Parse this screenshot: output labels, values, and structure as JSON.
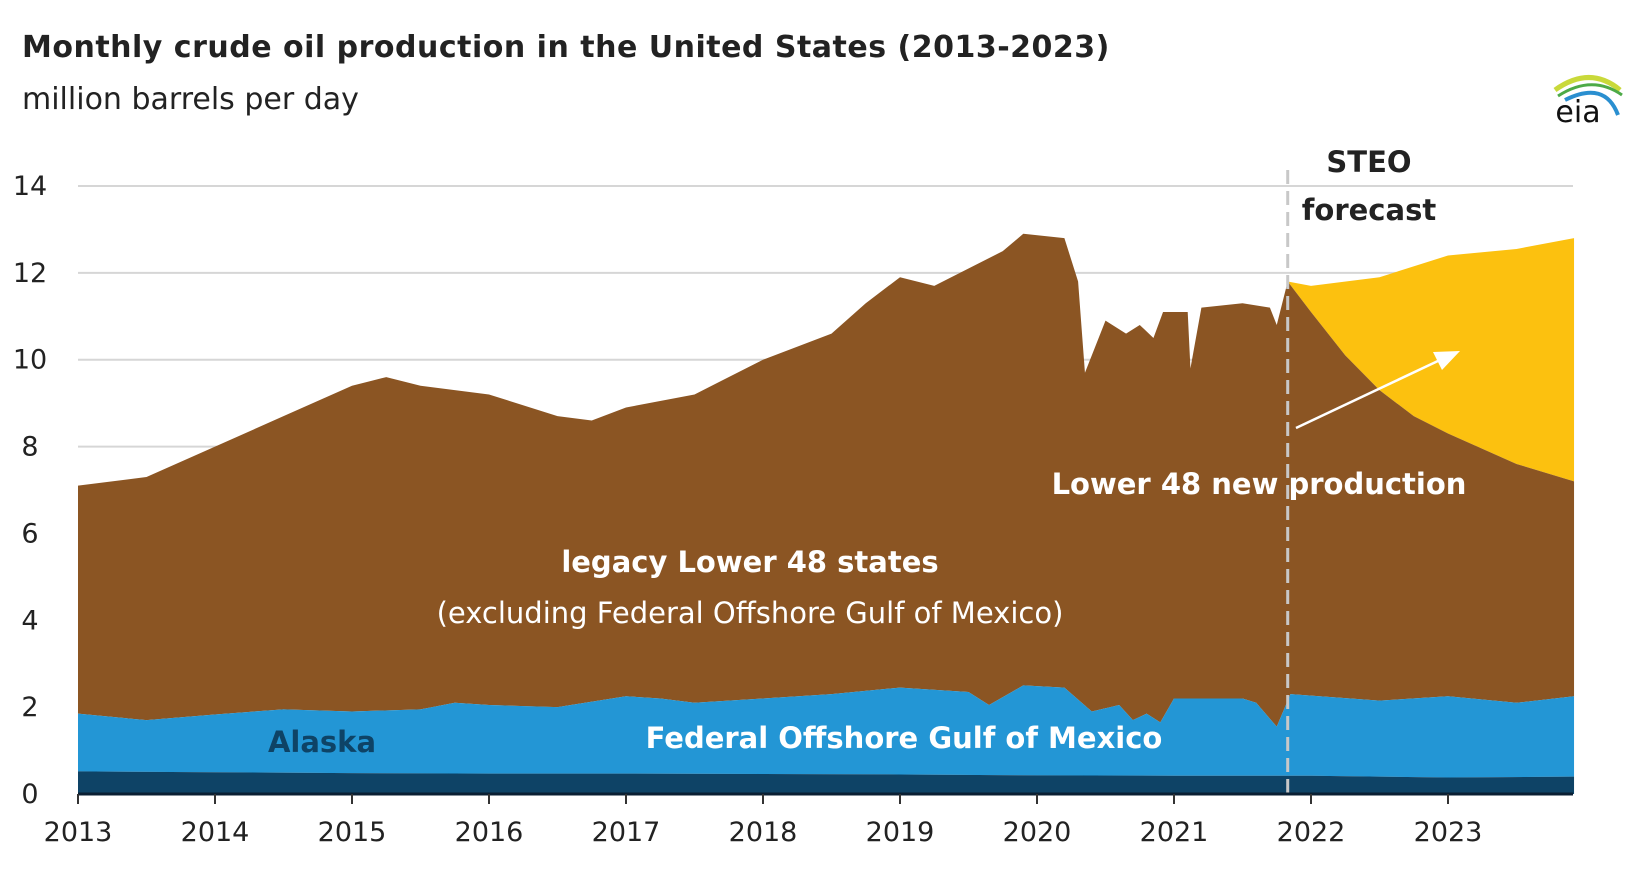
{
  "title": "Monthly crude oil production in the United States (2013-2023)",
  "subtitle": "million barrels per day",
  "logo_text": "eia",
  "colors": {
    "legacy": "#8b5523",
    "gulf": "#2396d5",
    "alaska": "#0e4366",
    "new": "#fcc10f"
  },
  "chart_data": {
    "type": "area",
    "stacked": true,
    "title": "Monthly crude oil production in the United States (2013-2023)",
    "ylabel": "million barrels per day",
    "xlim": [
      2013,
      2023.92
    ],
    "ylim": [
      0,
      14
    ],
    "yticks": [
      "0",
      "2",
      "4",
      "6",
      "8",
      "10",
      "12",
      "14"
    ],
    "xticks": [
      "2013",
      "2014",
      "2015",
      "2016",
      "2017",
      "2018",
      "2019",
      "2020",
      "2021",
      "2022",
      "2023"
    ],
    "grid": true,
    "forecast_start": 2021.83,
    "forecast_label": [
      "STEO",
      "forecast"
    ],
    "annotations": {
      "legacy": "legacy Lower 48 states",
      "legacy_note": "(excluding Federal Offshore Gulf of Mexico)",
      "new": "Lower 48 new production",
      "alaska": "Alaska",
      "gulf": "Federal Offshore Gulf of Mexico"
    },
    "series": [
      {
        "name": "Alaska (top)",
        "x": [
          2013,
          2014,
          2015,
          2016,
          2017,
          2018,
          2019,
          2020,
          2021,
          2022,
          2023,
          2023.92
        ],
        "y": [
          0.52,
          0.5,
          0.48,
          0.47,
          0.47,
          0.46,
          0.45,
          0.43,
          0.42,
          0.42,
          0.38,
          0.4
        ]
      },
      {
        "name": "Federal Offshore Gulf of Mexico (cumulative top)",
        "x": [
          2013,
          2013.5,
          2014,
          2014.5,
          2015,
          2015.5,
          2015.75,
          2016,
          2016.5,
          2017,
          2017.25,
          2017.5,
          2018,
          2018.5,
          2019,
          2019.5,
          2019.65,
          2019.9,
          2020.2,
          2020.4,
          2020.6,
          2020.7,
          2020.8,
          2020.9,
          2021.0,
          2021.5,
          2021.6,
          2021.75,
          2021.85,
          2022.5,
          2023,
          2023.5,
          2023.92
        ],
        "y": [
          1.85,
          1.7,
          1.83,
          1.95,
          1.9,
          1.95,
          2.1,
          2.05,
          2.0,
          2.25,
          2.2,
          2.1,
          2.2,
          2.3,
          2.45,
          2.35,
          2.05,
          2.5,
          2.45,
          1.9,
          2.05,
          1.7,
          1.85,
          1.65,
          2.2,
          2.2,
          2.1,
          1.55,
          2.3,
          2.15,
          2.25,
          2.1,
          2.25
        ]
      },
      {
        "name": "legacy Lower 48 states (cumulative top)",
        "x": [
          2013,
          2013.5,
          2014,
          2014.5,
          2015,
          2015.25,
          2015.5,
          2016,
          2016.5,
          2016.75,
          2017,
          2017.5,
          2018,
          2018.5,
          2018.75,
          2019,
          2019.25,
          2019.5,
          2019.75,
          2019.9,
          2020.2,
          2020.3,
          2020.35,
          2020.5,
          2020.65,
          2020.75,
          2020.85,
          2020.92,
          2021.1,
          2021.12,
          2021.2,
          2021.5,
          2021.7,
          2021.75,
          2021.83,
          2022.0,
          2022.25,
          2022.5,
          2022.75,
          2023.0,
          2023.5,
          2023.92
        ],
        "y": [
          7.1,
          7.3,
          8.0,
          8.7,
          9.4,
          9.6,
          9.4,
          9.2,
          8.7,
          8.6,
          8.9,
          9.2,
          10.0,
          10.6,
          11.3,
          11.9,
          11.7,
          12.1,
          12.5,
          12.9,
          12.8,
          11.8,
          9.7,
          10.9,
          10.6,
          10.8,
          10.5,
          11.1,
          11.1,
          9.8,
          11.2,
          11.3,
          11.2,
          10.8,
          11.8,
          11.1,
          10.1,
          9.3,
          8.7,
          8.3,
          7.6,
          7.2
        ]
      },
      {
        "name": "Lower 48 new production (cumulative top, forecast)",
        "x": [
          2021.83,
          2022.0,
          2022.5,
          2023.0,
          2023.5,
          2023.92
        ],
        "y": [
          11.8,
          11.7,
          11.9,
          12.4,
          12.55,
          12.8
        ]
      }
    ]
  }
}
